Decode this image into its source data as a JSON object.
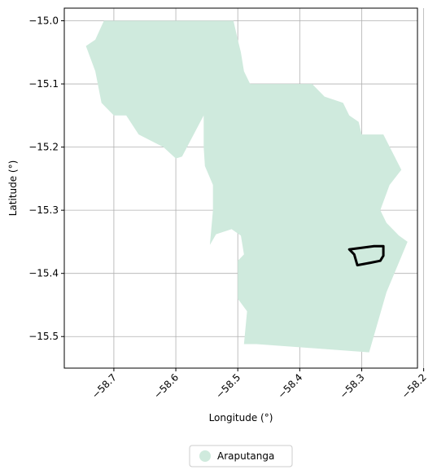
{
  "chart_data": {
    "type": "map",
    "xlabel": "Longitude (°)",
    "ylabel": "Latitude (°)",
    "xlim": [
      -58.78,
      -58.21
    ],
    "ylim": [
      -15.55,
      -14.98
    ],
    "xticks": [
      {
        "value": -58.7,
        "label": "−58.7"
      },
      {
        "value": -58.6,
        "label": "−58.6"
      },
      {
        "value": -58.5,
        "label": "−58.5"
      },
      {
        "value": -58.4,
        "label": "−58.4"
      },
      {
        "value": -58.3,
        "label": "−58.3"
      },
      {
        "value": -58.2,
        "label": "−58.2"
      }
    ],
    "yticks": [
      {
        "value": -15.0,
        "label": "−15.0"
      },
      {
        "value": -15.1,
        "label": "−15.1"
      },
      {
        "value": -15.2,
        "label": "−15.2"
      },
      {
        "value": -15.3,
        "label": "−15.3"
      },
      {
        "value": -15.4,
        "label": "−15.4"
      },
      {
        "value": -15.5,
        "label": "−15.5"
      }
    ],
    "grid": true,
    "legend": {
      "placement": "bottom-center",
      "entries": [
        {
          "label": "Araputanga",
          "color": "#cfeadd"
        }
      ]
    },
    "region": {
      "name": "Araputanga",
      "fill": "#cfeadd",
      "boundary": [
        [
          -58.716,
          -15.0
        ],
        [
          -58.507,
          -15.0
        ],
        [
          -58.5,
          -15.03
        ],
        [
          -58.495,
          -15.05
        ],
        [
          -58.49,
          -15.08
        ],
        [
          -58.48,
          -15.1
        ],
        [
          -58.38,
          -15.1
        ],
        [
          -58.36,
          -15.12
        ],
        [
          -58.33,
          -15.13
        ],
        [
          -58.32,
          -15.15
        ],
        [
          -58.305,
          -15.16
        ],
        [
          -58.3,
          -15.18
        ],
        [
          -58.265,
          -15.18
        ],
        [
          -58.236,
          -15.236
        ],
        [
          -58.255,
          -15.26
        ],
        [
          -58.27,
          -15.3
        ],
        [
          -58.26,
          -15.32
        ],
        [
          -58.24,
          -15.34
        ],
        [
          -58.226,
          -15.35
        ],
        [
          -58.26,
          -15.43
        ],
        [
          -58.288,
          -15.525
        ],
        [
          -58.47,
          -15.512
        ],
        [
          -58.49,
          -15.512
        ],
        [
          -58.485,
          -15.46
        ],
        [
          -58.5,
          -15.44
        ],
        [
          -58.5,
          -15.38
        ],
        [
          -58.49,
          -15.37
        ],
        [
          -58.495,
          -15.34
        ],
        [
          -58.51,
          -15.33
        ],
        [
          -58.535,
          -15.338
        ],
        [
          -58.545,
          -15.355
        ],
        [
          -58.54,
          -15.3
        ],
        [
          -58.54,
          -15.26
        ],
        [
          -58.553,
          -15.23
        ],
        [
          -58.555,
          -15.2
        ],
        [
          -58.555,
          -15.15
        ],
        [
          -58.59,
          -15.215
        ],
        [
          -58.6,
          -15.218
        ],
        [
          -58.62,
          -15.2
        ],
        [
          -58.66,
          -15.18
        ],
        [
          -58.68,
          -15.15
        ],
        [
          -58.7,
          -15.15
        ],
        [
          -58.72,
          -15.13
        ],
        [
          -58.73,
          -15.08
        ],
        [
          -58.745,
          -15.04
        ],
        [
          -58.73,
          -15.03
        ],
        [
          -58.716,
          -15.0
        ]
      ]
    },
    "outline": {
      "stroke": "#000000",
      "points": [
        [
          -58.32,
          -15.362
        ],
        [
          -58.28,
          -15.357
        ],
        [
          -58.265,
          -15.357
        ],
        [
          -58.265,
          -15.372
        ],
        [
          -58.27,
          -15.38
        ],
        [
          -58.285,
          -15.383
        ],
        [
          -58.307,
          -15.387
        ],
        [
          -58.312,
          -15.37
        ],
        [
          -58.32,
          -15.362
        ]
      ]
    }
  }
}
